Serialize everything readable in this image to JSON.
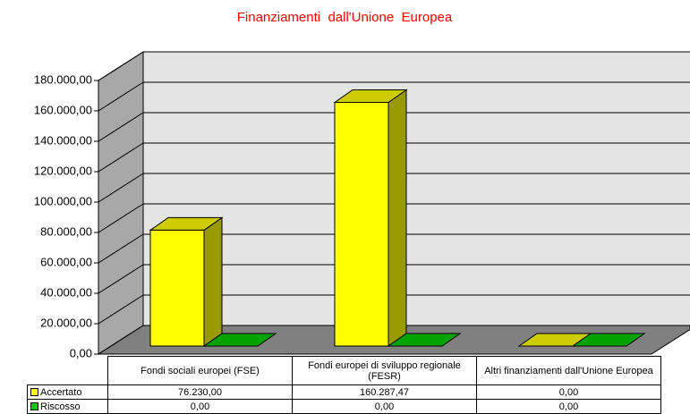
{
  "chart_data": {
    "type": "bar3d",
    "title": "Finanziamenti  dall'Unione  Europea",
    "categories": [
      "Fondi sociali europei (FSE)",
      "Fondi europei di sviluppo regionale (FESR)",
      "Altri finanziamenti dall'Unione Europea"
    ],
    "series": [
      {
        "name": "Accertato",
        "color": "#ffff00",
        "values": [
          76230,
          160287.47,
          0
        ],
        "value_labels": [
          "76.230,00",
          "160.287,47",
          "0,00"
        ]
      },
      {
        "name": "Riscosso",
        "color": "#00cc00",
        "values": [
          0,
          0,
          0
        ],
        "value_labels": [
          "0,00",
          "0,00",
          "0,00"
        ]
      }
    ],
    "ylim": [
      0,
      180000
    ],
    "yticks": [
      {
        "value": 0,
        "label": "0,00"
      },
      {
        "value": 20000,
        "label": "20.000,00"
      },
      {
        "value": 40000,
        "label": "40.000,00"
      },
      {
        "value": 60000,
        "label": "60.000,00"
      },
      {
        "value": 80000,
        "label": "80.000,00"
      },
      {
        "value": 100000,
        "label": "100.000,00"
      },
      {
        "value": 120000,
        "label": "120.000,00"
      },
      {
        "value": 140000,
        "label": "140.000,00"
      },
      {
        "value": 160000,
        "label": "160.000,00"
      },
      {
        "value": 180000,
        "label": "180.000,00"
      }
    ],
    "grid": true
  }
}
